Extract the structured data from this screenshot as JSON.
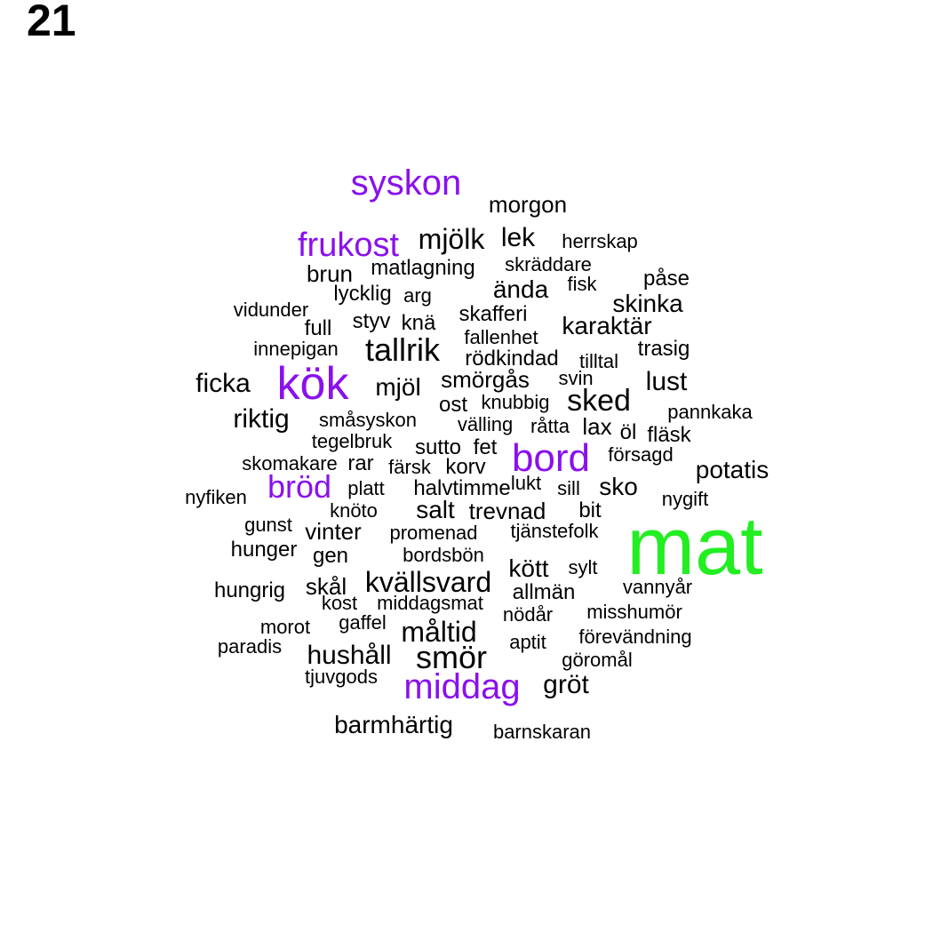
{
  "page_number": "21",
  "colors": {
    "top": "#22ee22",
    "high": "#8a10ee",
    "normal": "#000000"
  },
  "words": [
    {
      "text": "mat",
      "tier": "top"
    },
    {
      "text": "kök",
      "tier": "high"
    },
    {
      "text": "bord",
      "tier": "high"
    },
    {
      "text": "middag",
      "tier": "high"
    },
    {
      "text": "syskon",
      "tier": "high"
    },
    {
      "text": "frukost",
      "tier": "high"
    },
    {
      "text": "bröd",
      "tier": "high"
    },
    {
      "text": "morgon",
      "tier": "normal"
    },
    {
      "text": "mjölk",
      "tier": "normal"
    },
    {
      "text": "lek",
      "tier": "normal"
    },
    {
      "text": "herrskap",
      "tier": "normal"
    },
    {
      "text": "brun",
      "tier": "normal"
    },
    {
      "text": "matlagning",
      "tier": "normal"
    },
    {
      "text": "skräddare",
      "tier": "normal"
    },
    {
      "text": "påse",
      "tier": "normal"
    },
    {
      "text": "lycklig",
      "tier": "normal"
    },
    {
      "text": "arg",
      "tier": "normal"
    },
    {
      "text": "ända",
      "tier": "normal"
    },
    {
      "text": "fisk",
      "tier": "normal"
    },
    {
      "text": "skinka",
      "tier": "normal"
    },
    {
      "text": "vidunder",
      "tier": "normal"
    },
    {
      "text": "full",
      "tier": "normal"
    },
    {
      "text": "styv",
      "tier": "normal"
    },
    {
      "text": "knä",
      "tier": "normal"
    },
    {
      "text": "skafferi",
      "tier": "normal"
    },
    {
      "text": "karaktär",
      "tier": "normal"
    },
    {
      "text": "innepigan",
      "tier": "normal"
    },
    {
      "text": "tallrik",
      "tier": "normal"
    },
    {
      "text": "fallenhet",
      "tier": "normal"
    },
    {
      "text": "trasig",
      "tier": "normal"
    },
    {
      "text": "rödkindad",
      "tier": "normal"
    },
    {
      "text": "tilltal",
      "tier": "normal"
    },
    {
      "text": "ficka",
      "tier": "normal"
    },
    {
      "text": "mjöl",
      "tier": "normal"
    },
    {
      "text": "smörgås",
      "tier": "normal"
    },
    {
      "text": "svin",
      "tier": "normal"
    },
    {
      "text": "lust",
      "tier": "normal"
    },
    {
      "text": "knubbig",
      "tier": "normal"
    },
    {
      "text": "sked",
      "tier": "normal"
    },
    {
      "text": "ost",
      "tier": "normal"
    },
    {
      "text": "riktig",
      "tier": "normal"
    },
    {
      "text": "småsyskon",
      "tier": "normal"
    },
    {
      "text": "välling",
      "tier": "normal"
    },
    {
      "text": "råtta",
      "tier": "normal"
    },
    {
      "text": "lax",
      "tier": "normal"
    },
    {
      "text": "pannkaka",
      "tier": "normal"
    },
    {
      "text": "öl",
      "tier": "normal"
    },
    {
      "text": "fläsk",
      "tier": "normal"
    },
    {
      "text": "tegelbruk",
      "tier": "normal"
    },
    {
      "text": "sutto",
      "tier": "normal"
    },
    {
      "text": "fet",
      "tier": "normal"
    },
    {
      "text": "försagd",
      "tier": "normal"
    },
    {
      "text": "skomakare",
      "tier": "normal"
    },
    {
      "text": "rar",
      "tier": "normal"
    },
    {
      "text": "färsk",
      "tier": "normal"
    },
    {
      "text": "korv",
      "tier": "normal"
    },
    {
      "text": "potatis",
      "tier": "normal"
    },
    {
      "text": "platt",
      "tier": "normal"
    },
    {
      "text": "halvtimme",
      "tier": "normal"
    },
    {
      "text": "lukt",
      "tier": "normal"
    },
    {
      "text": "sill",
      "tier": "normal"
    },
    {
      "text": "sko",
      "tier": "normal"
    },
    {
      "text": "nyfiken",
      "tier": "normal"
    },
    {
      "text": "nygift",
      "tier": "normal"
    },
    {
      "text": "knöto",
      "tier": "normal"
    },
    {
      "text": "salt",
      "tier": "normal"
    },
    {
      "text": "trevnad",
      "tier": "normal"
    },
    {
      "text": "bit",
      "tier": "normal"
    },
    {
      "text": "gunst",
      "tier": "normal"
    },
    {
      "text": "vinter",
      "tier": "normal"
    },
    {
      "text": "promenad",
      "tier": "normal"
    },
    {
      "text": "tjänstefolk",
      "tier": "normal"
    },
    {
      "text": "hunger",
      "tier": "normal"
    },
    {
      "text": "gen",
      "tier": "normal"
    },
    {
      "text": "bordsbön",
      "tier": "normal"
    },
    {
      "text": "kött",
      "tier": "normal"
    },
    {
      "text": "sylt",
      "tier": "normal"
    },
    {
      "text": "hungrig",
      "tier": "normal"
    },
    {
      "text": "skål",
      "tier": "normal"
    },
    {
      "text": "kvällsvard",
      "tier": "normal"
    },
    {
      "text": "allmän",
      "tier": "normal"
    },
    {
      "text": "vannyår",
      "tier": "normal"
    },
    {
      "text": "kost",
      "tier": "normal"
    },
    {
      "text": "middagsmat",
      "tier": "normal"
    },
    {
      "text": "nödår",
      "tier": "normal"
    },
    {
      "text": "misshumör",
      "tier": "normal"
    },
    {
      "text": "morot",
      "tier": "normal"
    },
    {
      "text": "gaffel",
      "tier": "normal"
    },
    {
      "text": "måltid",
      "tier": "normal"
    },
    {
      "text": "aptit",
      "tier": "normal"
    },
    {
      "text": "förevändning",
      "tier": "normal"
    },
    {
      "text": "paradis",
      "tier": "normal"
    },
    {
      "text": "hushåll",
      "tier": "normal"
    },
    {
      "text": "smör",
      "tier": "normal"
    },
    {
      "text": "göromål",
      "tier": "normal"
    },
    {
      "text": "tjuvgods",
      "tier": "normal"
    },
    {
      "text": "gröt",
      "tier": "normal"
    },
    {
      "text": "barmhärtig",
      "tier": "normal"
    },
    {
      "text": "barnskaran",
      "tier": "normal"
    }
  ]
}
